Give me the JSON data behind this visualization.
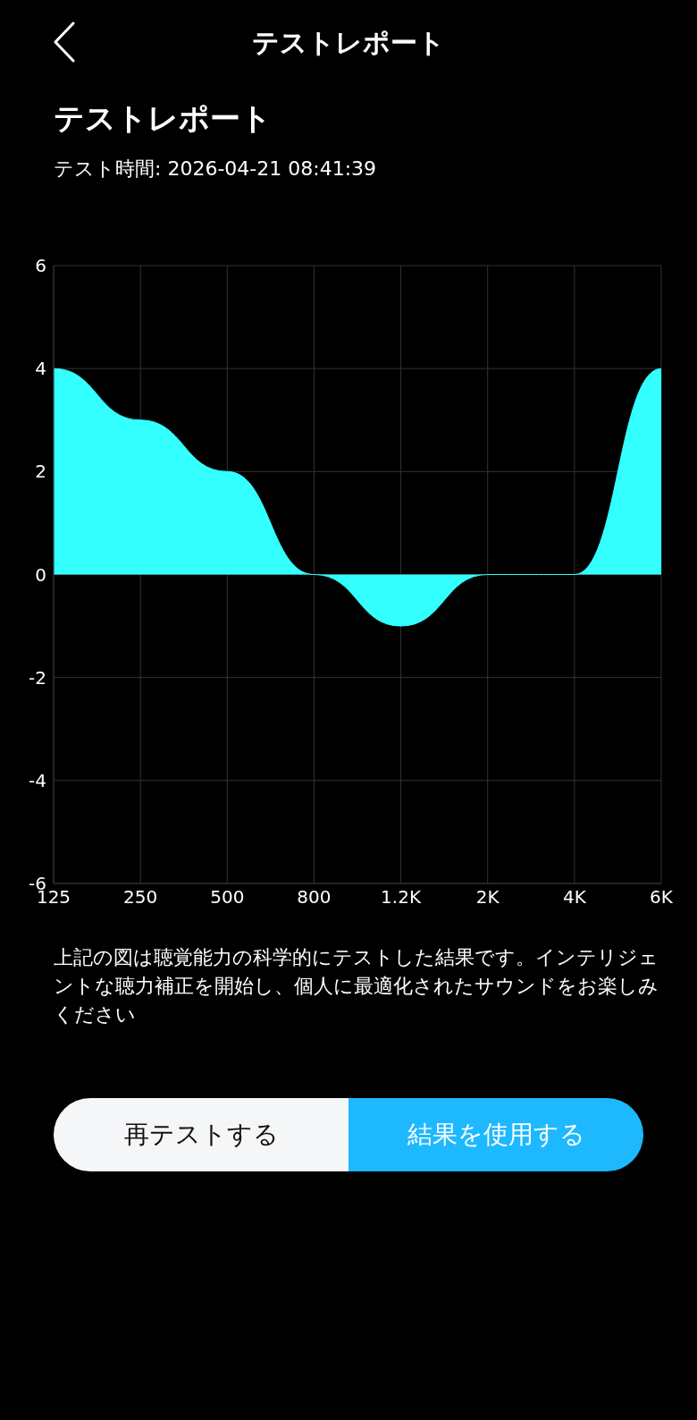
{
  "chart_data": {
    "type": "area",
    "title": "テストレポート",
    "subtitle": "テスト時間: 2026-04-21 08:41:39",
    "categories": [
      "125",
      "250",
      "500",
      "800",
      "1.2K",
      "2K",
      "4K",
      "6K"
    ],
    "values": [
      4,
      3,
      2,
      0,
      -1,
      0,
      0,
      4
    ],
    "color": "#33ffff",
    "ylim": [
      -6,
      6
    ],
    "yticks": [
      -6,
      -4,
      -2,
      0,
      2,
      4,
      6
    ],
    "grid": true,
    "annotations": [
      "テストレポート",
      "上記の図は聴覚能力の科学的にテストした結果です。インテリジェントな聴力補正を開始し、個人に最適化されたサウンドをお楽しみください",
      "再テストする",
      "結果を使用する"
    ]
  }
}
